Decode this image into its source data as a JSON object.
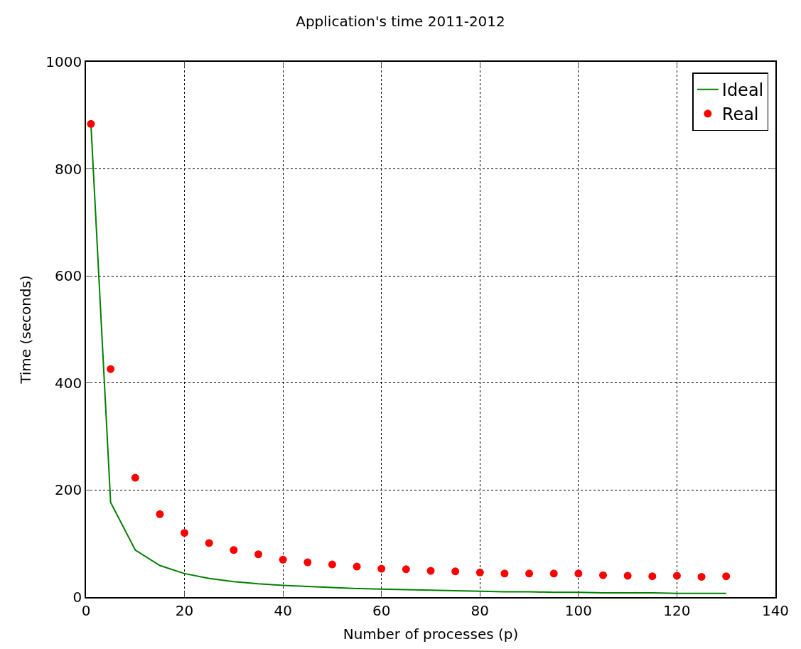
{
  "chart_data": {
    "type": "line",
    "title": "Application's time 2011-2012",
    "xlabel": "Number of processes (p)",
    "ylabel": "Time (seconds)",
    "x": [
      1,
      5,
      10,
      15,
      20,
      25,
      30,
      35,
      40,
      45,
      50,
      55,
      60,
      65,
      70,
      75,
      80,
      85,
      90,
      95,
      100,
      105,
      110,
      115,
      120,
      125,
      130
    ],
    "series": [
      {
        "name": "Ideal",
        "color": "#008000",
        "marker": "none",
        "line_style": "solid",
        "values": [
          884,
          177,
          88,
          59,
          44,
          35,
          29,
          25,
          22,
          20,
          18,
          16,
          15,
          14,
          13,
          12,
          11,
          10,
          10,
          9,
          9,
          8,
          8,
          8,
          7,
          7,
          7
        ]
      },
      {
        "name": "Real",
        "type": "scatter",
        "color": "#ff0000",
        "marker": "circle",
        "values": [
          884,
          426,
          223,
          155,
          120,
          101,
          88,
          80,
          70,
          65,
          61,
          57,
          53,
          52,
          49,
          48,
          46,
          44,
          44,
          44,
          44,
          41,
          40,
          39,
          40,
          38,
          39
        ]
      }
    ],
    "xlim": [
      0,
      140
    ],
    "xticks": [
      0,
      20,
      40,
      60,
      80,
      100,
      120,
      140
    ],
    "ylim": [
      0,
      1000
    ],
    "yticks": [
      0,
      200,
      400,
      600,
      800,
      1000
    ],
    "grid": true,
    "legend": "top right"
  }
}
